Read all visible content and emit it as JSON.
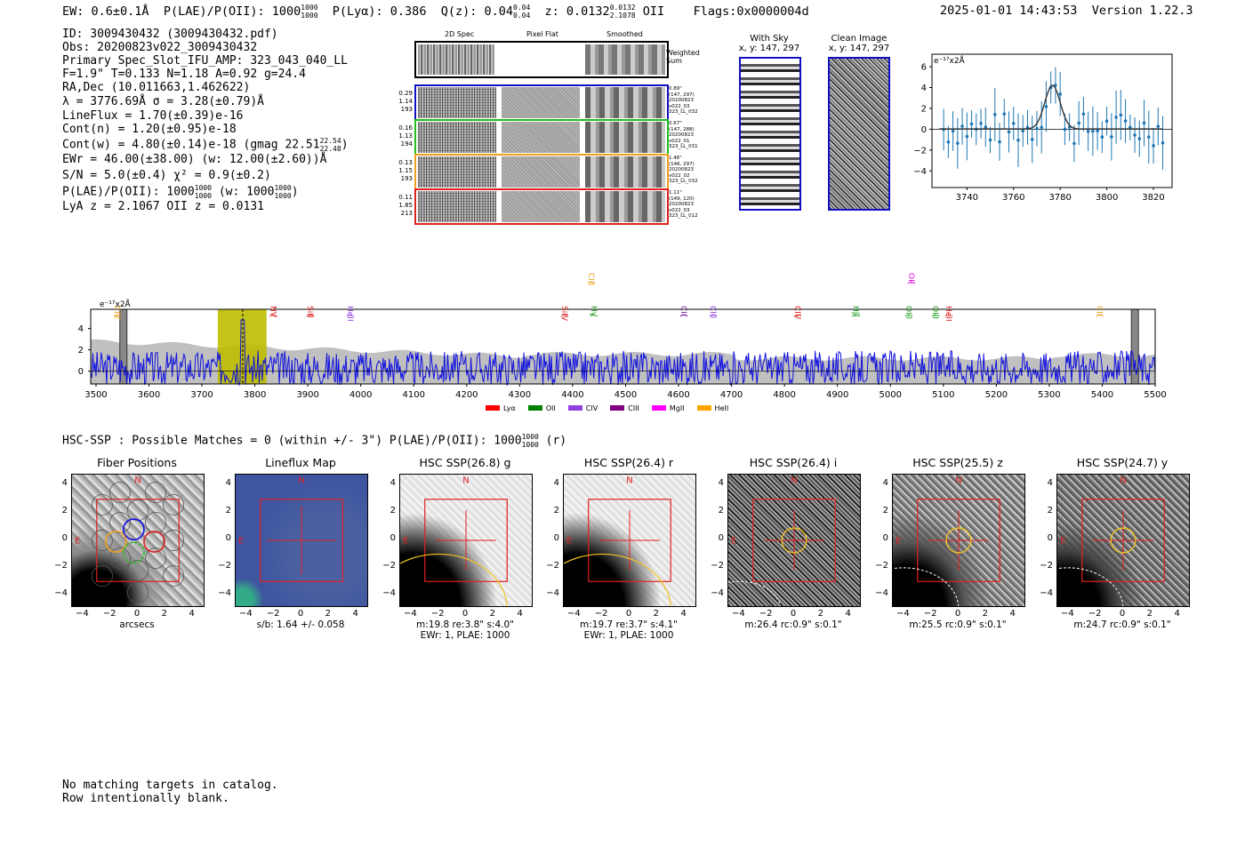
{
  "header": {
    "ew": "EW: 0.6±0.1Å",
    "plae_label": "P(LAE)/P(OII): 1000",
    "plae_frac": [
      "1000",
      "1000"
    ],
    "plya": "P(Lyα): 0.386",
    "qz_label": "Q(z): 0.04",
    "qz_frac": [
      "0.04",
      "0.04"
    ],
    "z_label": "z: 0.0132",
    "z_frac": [
      "0.0132",
      "2.1078"
    ],
    "z_line": "OII",
    "flags": "Flags:0x0000004d",
    "datetime": "2025-01-01 14:43:53",
    "version": "Version 1.22.3"
  },
  "info": {
    "id": "ID: 3009430432 (3009430432.pdf)",
    "obs": "Obs: 20200823v022_3009430432",
    "primary": "Primary Spec_Slot_IFU_AMP: 323_043_040_LL",
    "params": "F=1.9\"  T=0.133  N=1.18  A=0.92  g=24.4",
    "radec": "RA,Dec (10.011663,1.462622)",
    "lambda": "λ = 3776.69Å  σ = 3.28(±0.79)Å",
    "lineflux": "LineFlux = 1.70(±0.39)e-16",
    "contn": "Cont(n) = 1.20(±0.95)e-18",
    "contw_label": "Cont(w) = 4.80(±0.14)e-18 (gmag 22.51",
    "contw_frac": [
      "22.54",
      "22.48"
    ],
    "ewr": "EWr = 46.00(±38.00) (w: 12.00(±2.60))Å",
    "sn": "S/N = 5.0(±0.4)  χ² = 0.9(±0.2)",
    "plae_label": "P(LAE)/P(OII): 1000",
    "plae_frac": [
      "1000",
      "1000"
    ],
    "plae_w_label": "(w: 1000",
    "plae_w_frac": [
      "1000",
      "1000"
    ],
    "lya_z": "LyA z = 2.1067   OII z = 0.0131"
  },
  "cutouts": {
    "col_headers": [
      "2D Spec",
      "Pixel Flat",
      "Smoothed"
    ],
    "weighted_label": "Weighted Sum",
    "rows": [
      {
        "left": [
          "0.29",
          "1.14",
          "193"
        ],
        "right": [
          "0.89\"",
          "(147, 297)",
          "20200823",
          "v022_03",
          "323_LL_032"
        ],
        "color": "#1010c0"
      },
      {
        "left": [
          "0.16",
          "1.13",
          "194"
        ],
        "right": [
          "0.67\"",
          "(147, 288)",
          "20200823",
          "v022_01",
          "323_LL_031"
        ],
        "color": "#20c020"
      },
      {
        "left": [
          "0.13",
          "1.15",
          "193"
        ],
        "right": [
          "1.46\"",
          "(146, 297)",
          "20200823",
          "v022_02",
          "323_LL_032"
        ],
        "color": "#f0a020"
      },
      {
        "left": [
          "0.11",
          "1.85",
          "213"
        ],
        "right": [
          "1.11\"",
          "(149, 120)",
          "20200823",
          "v022_03",
          "323_LL_012"
        ],
        "color": "#e02020"
      }
    ]
  },
  "sky": {
    "with_sky_title": "With Sky",
    "with_sky_xy": "x, y: 147, 297",
    "clean_title": "Clean Image",
    "clean_xy": "x, y: 147, 297"
  },
  "zoom_chart": {
    "units": "e⁻¹⁷x2Å",
    "xticks": [
      "3740",
      "3760",
      "3780",
      "3800",
      "3820"
    ],
    "yticks": [
      "6",
      "4",
      "2",
      "0",
      "−2",
      "−4"
    ]
  },
  "spectrum": {
    "units": "e⁻¹⁷x2Å",
    "xticks": [
      "3500",
      "3600",
      "3700",
      "3800",
      "3900",
      "4000",
      "4100",
      "4200",
      "4300",
      "4400",
      "4500",
      "4600",
      "4700",
      "4800",
      "4900",
      "5000",
      "5100",
      "5200",
      "5300",
      "5400",
      "5500"
    ],
    "yticks": [
      "4",
      "2",
      "0"
    ],
    "lines": [
      {
        "label": "CIV",
        "wave": 3530,
        "color": "#f0a020"
      },
      {
        "label": "NV",
        "wave": 3825,
        "color": "#e02020"
      },
      {
        "label": "SiII",
        "wave": 3895,
        "color": "#e02020"
      },
      {
        "label": "HeII",
        "wave": 3970,
        "color": "#9040e0"
      },
      {
        "label": "SiIV",
        "wave": 4375,
        "color": "#e02020"
      },
      {
        "label": "CIII",
        "wave": 4425,
        "color": "#f0a020"
      },
      {
        "label": "Hγ",
        "wave": 4430,
        "color": "#20a020"
      },
      {
        "label": "CII",
        "wave": 4600,
        "color": "#7020a0"
      },
      {
        "label": "CIII",
        "wave": 4655,
        "color": "#9040e0"
      },
      {
        "label": "CIV",
        "wave": 4815,
        "color": "#e02020"
      },
      {
        "label": "Hβ",
        "wave": 4925,
        "color": "#20a020"
      },
      {
        "label": "OII",
        "wave": 5030,
        "color": "#e000e0"
      },
      {
        "label": "OIII",
        "wave": 5025,
        "color": "#20a020"
      },
      {
        "label": "OIII",
        "wave": 5075,
        "color": "#20a020"
      },
      {
        "label": "HeII",
        "wave": 5100,
        "color": "#e02020"
      },
      {
        "label": "CII",
        "wave": 5385,
        "color": "#f0a020"
      }
    ],
    "legend": [
      {
        "label": "Lyα",
        "color": "#ff0000"
      },
      {
        "label": "OII",
        "color": "#008000"
      },
      {
        "label": "CIV",
        "color": "#9040e0"
      },
      {
        "label": "CIII",
        "color": "#800080"
      },
      {
        "label": "MgII",
        "color": "#ff00ff"
      },
      {
        "label": "HeII",
        "color": "#ffa500"
      }
    ]
  },
  "hsc": {
    "title_label": "HSC-SSP : Possible Matches = 0 (within +/- 3\")  P(LAE)/P(OII): 1000",
    "title_frac": [
      "1000",
      "1000"
    ],
    "title_suffix": "(r)",
    "panels": [
      {
        "title": "Fiber Positions",
        "sub": [
          "arcsecs"
        ]
      },
      {
        "title": "Lineflux Map",
        "sub": [
          "s/b: 1.64 +/- 0.058"
        ]
      },
      {
        "title": "HSC SSP(26.8) g",
        "sub": [
          "m:19.8  re:3.8\"  s:4.0\"",
          "EWr: 1, PLAE: 1000"
        ]
      },
      {
        "title": "HSC SSP(26.4) r",
        "sub": [
          "m:19.7  re:3.7\"  s:4.1\"",
          "EWr: 1, PLAE: 1000"
        ]
      },
      {
        "title": "HSC SSP(26.4) i",
        "sub": [
          "m:26.4 rc:0.9\"  s:0.1\""
        ]
      },
      {
        "title": "HSC SSP(25.5) z",
        "sub": [
          "m:25.5 rc:0.9\"  s:0.1\""
        ]
      },
      {
        "title": "HSC SSP(24.7) y",
        "sub": [
          "m:24.7 rc:0.9\"  s:0.1\""
        ]
      }
    ],
    "xticks": [
      "−4",
      "−2",
      "0",
      "2",
      "4"
    ],
    "yticks": [
      "4",
      "2",
      "0",
      "−2",
      "−4"
    ],
    "n_label": "N",
    "e_label": "E"
  },
  "footer": {
    "line1": "No matching targets in catalog.",
    "line2": "Row intentionally blank."
  }
}
